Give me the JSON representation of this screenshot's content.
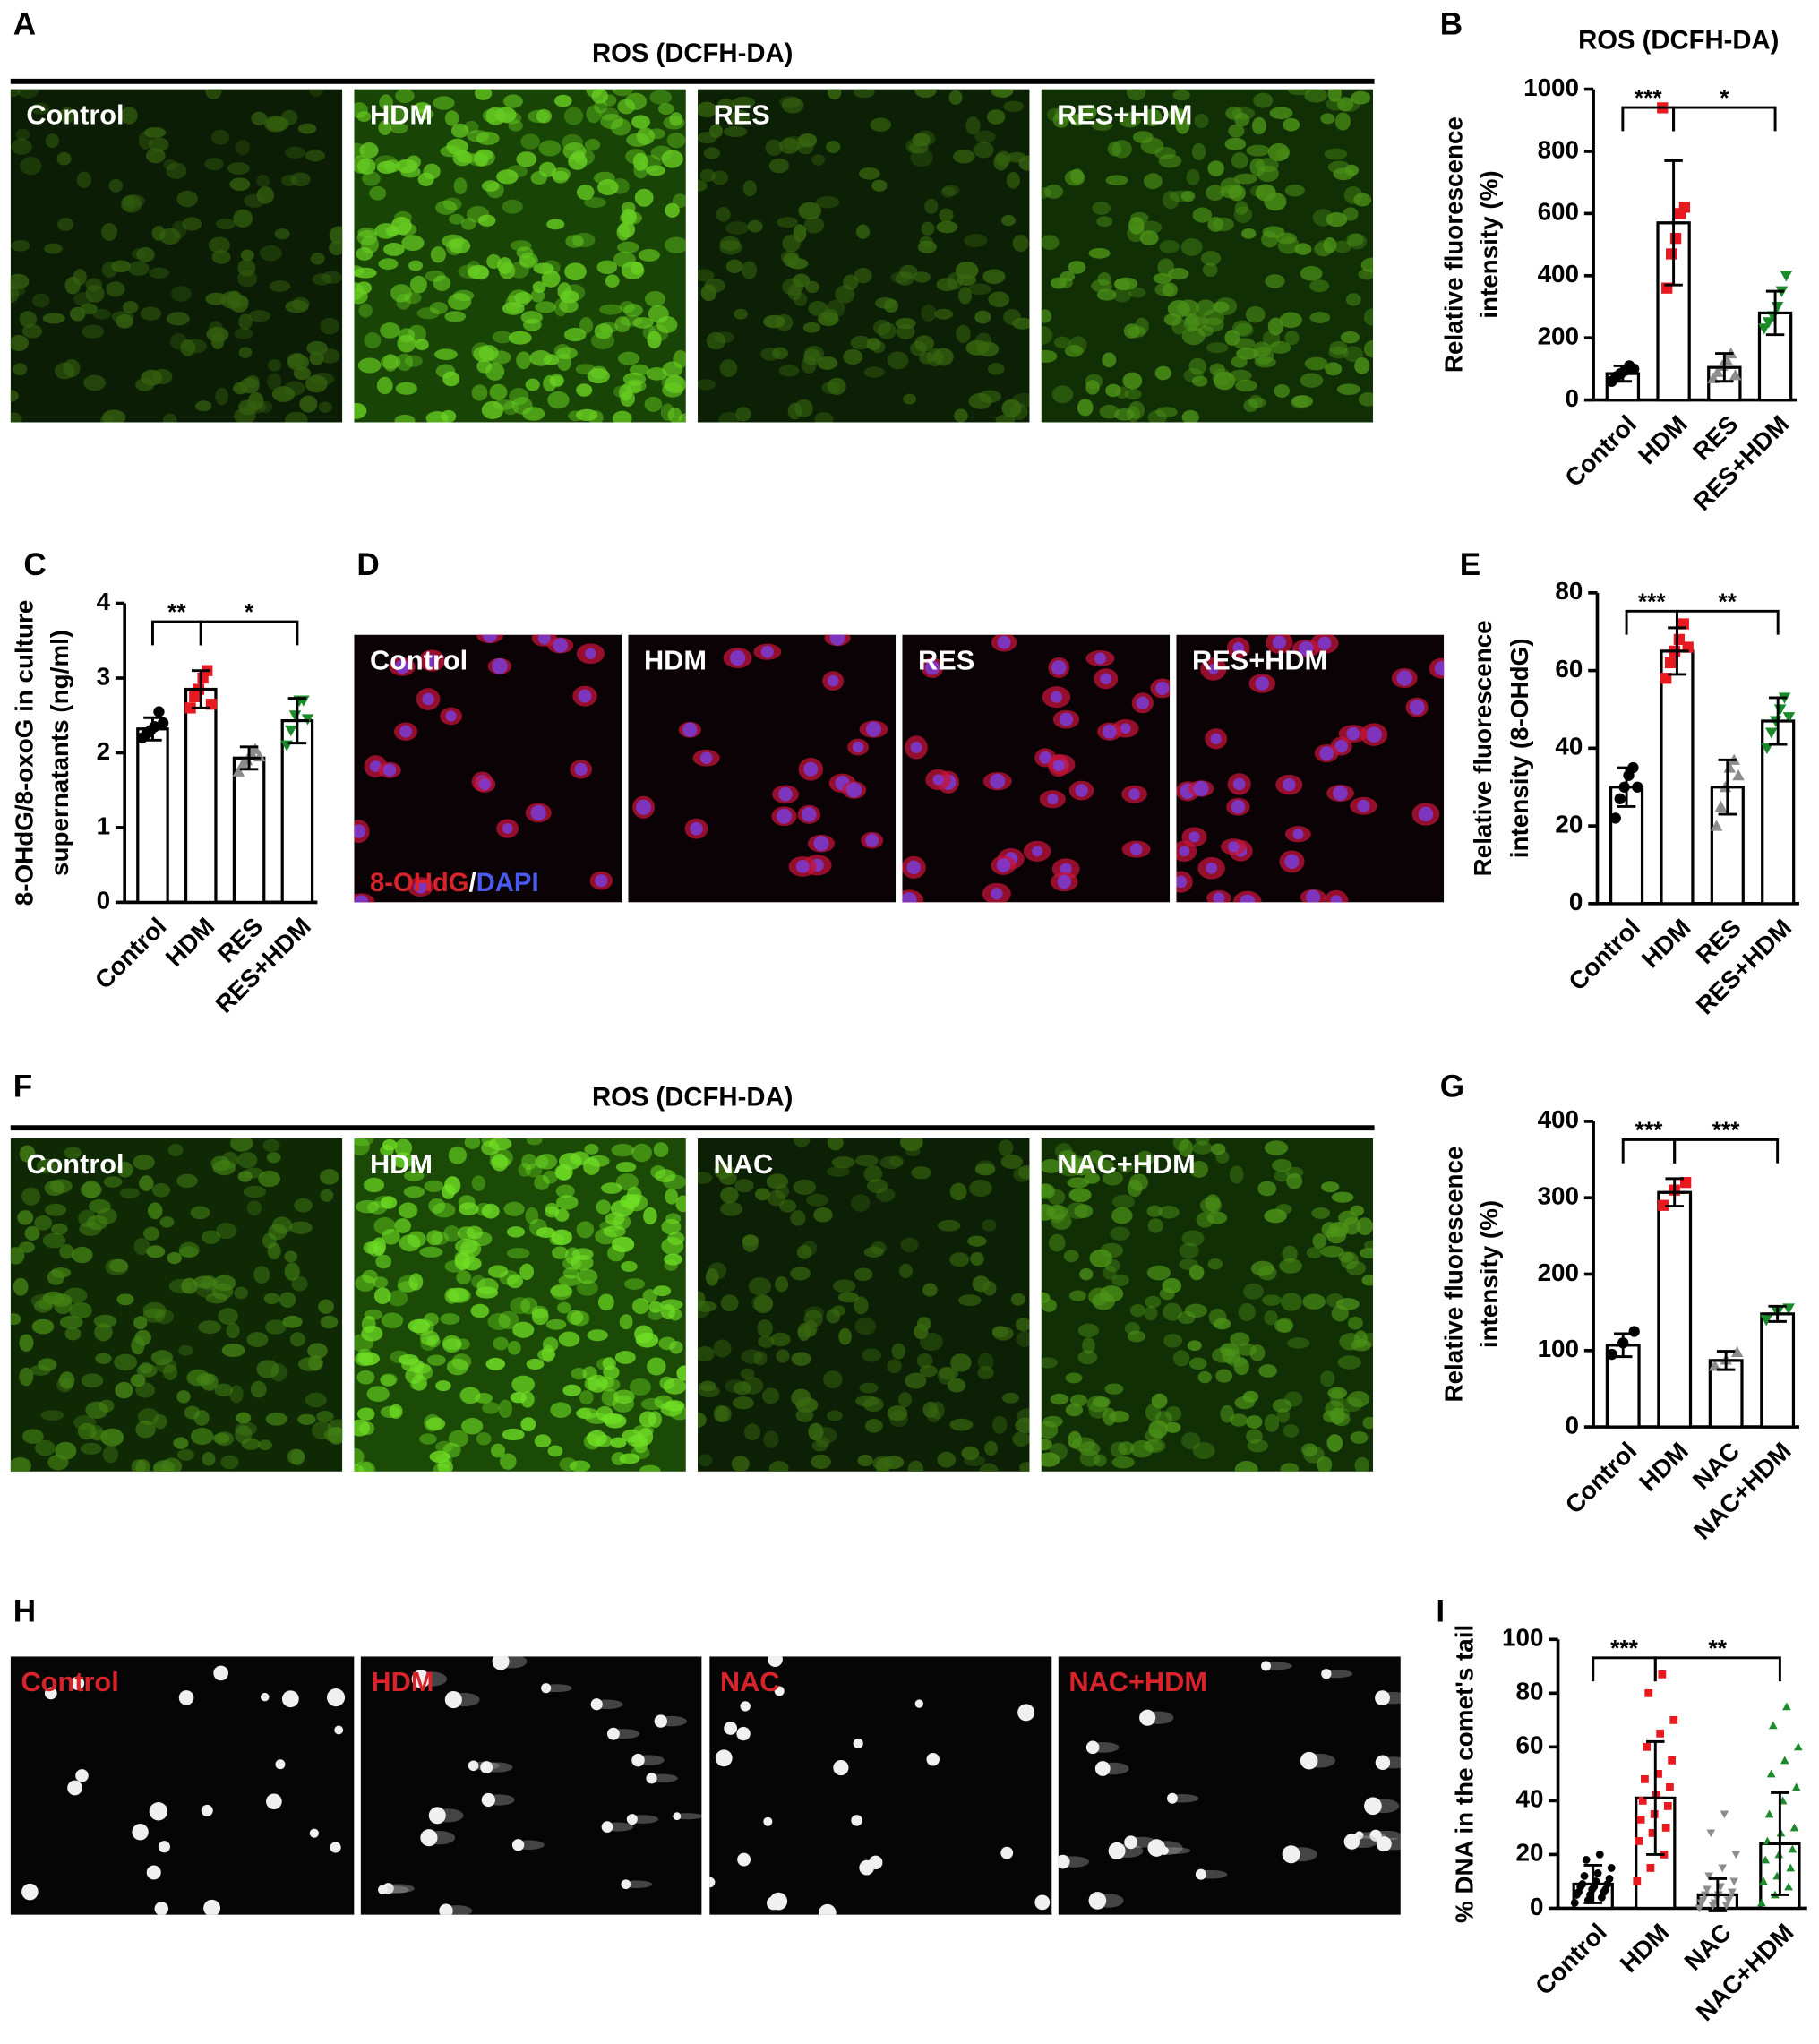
{
  "figure_panels": [
    {
      "letter": "A",
      "title": "ROS (DCFH-DA)",
      "images": [
        "Control",
        "HDM",
        "RES",
        "RES+HDM"
      ]
    },
    {
      "letter": "D",
      "images": [
        "Control",
        "HDM",
        "RES",
        "RES+HDM"
      ],
      "stain": {
        "marker": "8-OHdG",
        "separator": "/",
        "counterstain": "DAPI"
      }
    },
    {
      "letter": "F",
      "title": "ROS (DCFH-DA)",
      "images": [
        "Control",
        "HDM",
        "NAC",
        "NAC+HDM"
      ]
    },
    {
      "letter": "H",
      "images": [
        "Control",
        "HDM",
        "NAC",
        "NAC+HDM"
      ]
    }
  ],
  "chart_data": [
    {
      "letter": "B",
      "type": "bar",
      "title": "ROS (DCFH-DA)",
      "y_label": [
        "Relative fluorescence",
        "intensity (%)"
      ],
      "categories": [
        "Control",
        "HDM",
        "RES",
        "RES+HDM"
      ],
      "values": [
        85,
        570,
        105,
        280
      ],
      "errors": [
        25,
        200,
        45,
        70
      ],
      "colors": [
        "#000000",
        "#e8191f",
        "#8c8c8c",
        "#1a8a2a"
      ],
      "markers": [
        "circle",
        "square",
        "triangle",
        "triangle-down"
      ],
      "points": [
        [
          60,
          75,
          85,
          95,
          110,
          100
        ],
        [
          940,
          360,
          470,
          520,
          600,
          620
        ],
        [
          70,
          90,
          110,
          130,
          150,
          80
        ],
        [
          230,
          250,
          270,
          300,
          350,
          400
        ]
      ],
      "ylim": [
        0,
        1000
      ],
      "yticks": [
        0,
        200,
        400,
        600,
        800,
        1000
      ],
      "significance": [
        "***",
        "*"
      ]
    },
    {
      "letter": "C",
      "type": "bar",
      "y_label": [
        "8-OHdG/8-oxoG in culture",
        "supernatants  (ng/ml)"
      ],
      "categories": [
        "Control",
        "HDM",
        "RES",
        "RES+HDM"
      ],
      "values": [
        2.32,
        2.85,
        1.93,
        2.43
      ],
      "errors": [
        0.15,
        0.25,
        0.15,
        0.3
      ],
      "colors": [
        "#000000",
        "#e8191f",
        "#8c8c8c",
        "#1a8a2a"
      ],
      "markers": [
        "circle",
        "square",
        "triangle",
        "triangle-down"
      ],
      "points": [
        [
          2.2,
          2.25,
          2.3,
          2.35,
          2.55,
          2.4
        ],
        [
          2.6,
          2.75,
          2.85,
          3.0,
          3.1,
          2.65
        ],
        [
          1.75,
          1.85,
          1.9,
          2.0,
          2.05,
          1.95
        ],
        [
          2.1,
          2.3,
          2.5,
          2.7,
          2.7,
          2.45
        ]
      ],
      "ylim": [
        0,
        4
      ],
      "yticks": [
        0,
        1,
        2,
        3,
        4
      ],
      "significance": [
        "**",
        "*"
      ]
    },
    {
      "letter": "E",
      "type": "bar",
      "y_label": [
        "Relative fluorescence",
        "intensity (8-OHdG)"
      ],
      "categories": [
        "Control",
        "HDM",
        "RES",
        "RES+HDM"
      ],
      "values": [
        30,
        65,
        30,
        47
      ],
      "errors": [
        5,
        6,
        7,
        6
      ],
      "colors": [
        "#000000",
        "#e8191f",
        "#8c8c8c",
        "#1a8a2a"
      ],
      "markers": [
        "circle",
        "square",
        "triangle",
        "triangle-down"
      ],
      "points": [
        [
          22,
          27,
          30,
          33,
          35,
          30
        ],
        [
          58,
          62,
          65,
          68,
          72,
          66
        ],
        [
          20,
          25,
          30,
          35,
          37,
          33
        ],
        [
          40,
          44,
          47,
          50,
          53,
          48
        ]
      ],
      "ylim": [
        0,
        80
      ],
      "yticks": [
        0,
        20,
        40,
        60,
        80
      ],
      "significance": [
        "***",
        "**"
      ]
    },
    {
      "letter": "G",
      "type": "bar",
      "y_label": [
        "Relative fluorescence",
        "intensity (%)"
      ],
      "categories": [
        "Control",
        "HDM",
        "NAC",
        "NAC+HDM"
      ],
      "values": [
        107,
        307,
        87,
        148
      ],
      "errors": [
        15,
        18,
        12,
        10
      ],
      "colors": [
        "#000000",
        "#e8191f",
        "#8c8c8c",
        "#1a8a2a"
      ],
      "markers": [
        "circle",
        "square",
        "triangle",
        "triangle-down"
      ],
      "points": [
        [
          95,
          110,
          125
        ],
        [
          290,
          310,
          320
        ],
        [
          80,
          88,
          98
        ],
        [
          140,
          150,
          155
        ]
      ],
      "ylim": [
        0,
        400
      ],
      "yticks": [
        0,
        100,
        200,
        300,
        400
      ],
      "significance": [
        "***",
        "***"
      ]
    },
    {
      "letter": "I",
      "type": "bar",
      "y_label": [
        "% DNA in the comet's tail"
      ],
      "categories": [
        "Control",
        "HDM",
        "NAC",
        "NAC+HDM"
      ],
      "values": [
        9,
        41,
        5,
        24
      ],
      "errors": [
        7,
        21,
        6,
        19
      ],
      "colors": [
        "#000000",
        "#e8191f",
        "#8c8c8c",
        "#1a8a2a"
      ],
      "markers": [
        "circle",
        "square",
        "triangle-down",
        "triangle"
      ],
      "points": [
        [
          2,
          3,
          4,
          5,
          5,
          6,
          6,
          7,
          7,
          8,
          8,
          9,
          9,
          10,
          11,
          12,
          13,
          15,
          18,
          20
        ],
        [
          10,
          15,
          20,
          25,
          28,
          30,
          33,
          35,
          38,
          40,
          42,
          45,
          48,
          50,
          55,
          60,
          65,
          70,
          80,
          87
        ],
        [
          0,
          1,
          1,
          2,
          2,
          3,
          3,
          4,
          4,
          5,
          5,
          6,
          7,
          8,
          10,
          12,
          15,
          20,
          28,
          35
        ],
        [
          2,
          5,
          8,
          10,
          12,
          15,
          18,
          20,
          22,
          25,
          28,
          30,
          35,
          40,
          45,
          50,
          55,
          60,
          68,
          75
        ]
      ],
      "ylim": [
        0,
        100
      ],
      "yticks": [
        0,
        20,
        40,
        60,
        80,
        100
      ],
      "significance": [
        "***",
        "**"
      ]
    }
  ]
}
